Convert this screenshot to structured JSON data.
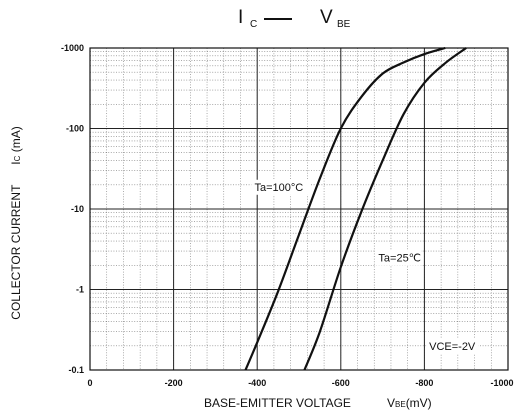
{
  "header": {
    "title_ic": "I",
    "title_ic_sub": "C",
    "title_vbe": "V",
    "title_vbe_sub": "BE"
  },
  "axes": {
    "ylabel_main": "COLLECTOR CURRENT",
    "ylabel_sym": "I",
    "ylabel_sub": "C",
    "ylabel_unit": "(mA)",
    "xlabel_main": "BASE-EMITTER VOLTAGE",
    "xlabel_sym": "V",
    "xlabel_sub": "BE",
    "xlabel_unit": "(mV)"
  },
  "chart_data": {
    "type": "line",
    "title": "IC — VBE",
    "xlabel": "BASE-EMITTER VOLTAGE VBE(mV)",
    "ylabel": "COLLECTOR CURRENT IC (mA)",
    "x_ticks": [
      "0",
      "-200",
      "-400",
      "-600",
      "-800",
      "-1000"
    ],
    "y_ticks": [
      "-1000",
      "-100",
      "-10",
      "-1",
      "-0.1"
    ],
    "xlim": [
      0,
      -1000
    ],
    "ylim": [
      -0.1,
      -1000
    ],
    "y_scale": "log",
    "grid": true,
    "series": [
      {
        "name": "Ta=100°C",
        "x": [
          -372,
          -400,
          -450,
          -500,
          -550,
          -600,
          -650,
          -700,
          -750,
          -800,
          -850
        ],
        "y": [
          -0.1,
          -0.22,
          -0.95,
          -4.8,
          -24,
          -100,
          -250,
          -480,
          -660,
          -840,
          -1000
        ]
      },
      {
        "name": "Ta=25℃",
        "x": [
          -513,
          -550,
          -600,
          -650,
          -700,
          -750,
          -800,
          -850,
          -900
        ],
        "y": [
          -0.1,
          -0.3,
          -1.9,
          -9.5,
          -40,
          -150,
          -370,
          -650,
          -1000
        ]
      }
    ],
    "annotations": [
      "Ta=100°C",
      "Ta=25℃",
      "VCE=-2V"
    ]
  }
}
